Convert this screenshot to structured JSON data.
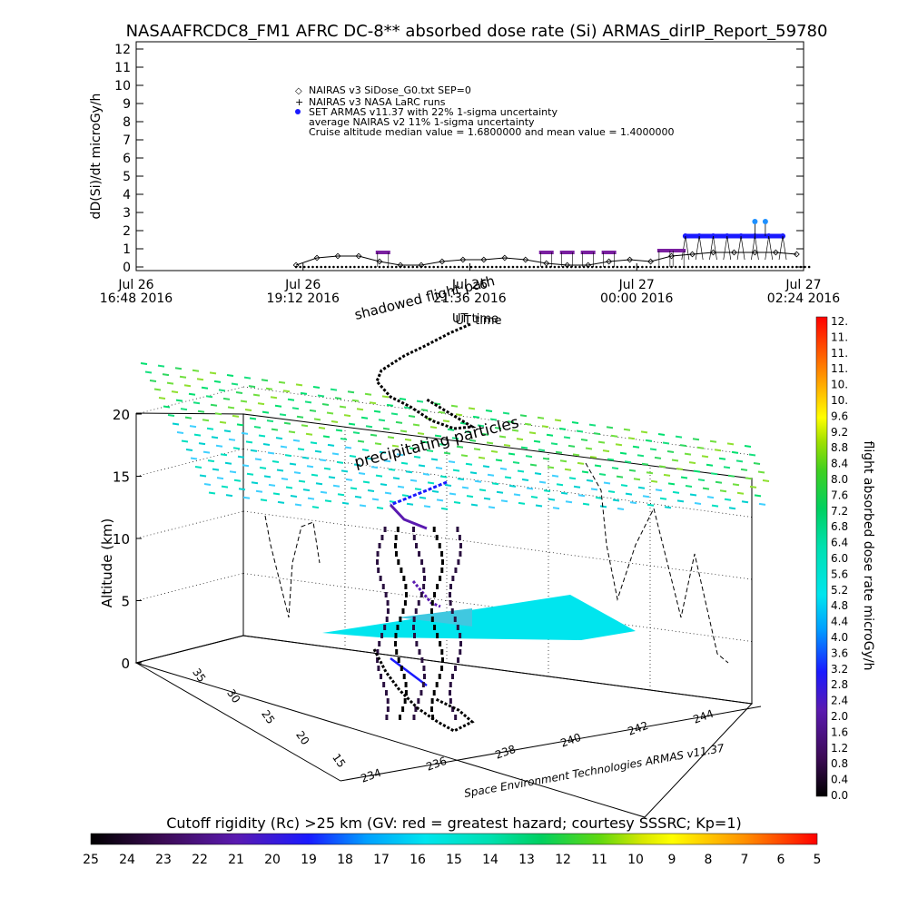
{
  "chart_data": [
    {
      "type": "line",
      "title": "NASAAFRCDC8_FM1 AFRC DC-8** absorbed dose rate (Si) ARMAS_dirIP_Report_59780",
      "ylabel": "dD(Si)/dt microGy/h",
      "xlabel": "UT time",
      "ylim": [
        0,
        12
      ],
      "yticks": [
        "0",
        "1",
        "2",
        "3",
        "4",
        "5",
        "6",
        "7",
        "8",
        "9",
        "10",
        "11",
        "12"
      ],
      "xticks": [
        {
          "line1": "Jul 26",
          "line2": "16:48 2016"
        },
        {
          "line1": "Jul 26",
          "line2": "19:12 2016"
        },
        {
          "line1": "Jul 26",
          "line2": "21:36 2016"
        },
        {
          "line1": "Jul 27",
          "line2": "00:00 2016"
        },
        {
          "line1": "Jul 27",
          "line2": "02:24 2016"
        }
      ],
      "legend": [
        "NAIRAS v3 SiDose_G0.txt SEP=0",
        "NAIRAS v3 NASA LaRC runs",
        "SET ARMAS v11.37 with 22% 1-sigma uncertainty",
        "average NAIRAS v2 11% 1-sigma uncertainty",
        "Cruise altitude median value = 1.6800000 and mean value = 1.4000000"
      ],
      "series": [
        {
          "name": "NAIRAS v3 SiDose_G0.txt SEP=0",
          "color": "#000000",
          "x_hours": [
            2.3,
            2.6,
            2.9,
            3.2,
            3.5,
            3.8,
            4.1,
            4.4,
            4.7,
            5.0,
            5.3,
            5.6,
            5.9,
            6.2,
            6.5,
            6.8,
            7.1,
            7.4,
            7.7,
            8.0,
            8.3,
            8.6,
            8.9,
            9.2,
            9.5
          ],
          "y": [
            0.1,
            0.5,
            0.6,
            0.6,
            0.3,
            0.1,
            0.1,
            0.3,
            0.4,
            0.4,
            0.5,
            0.4,
            0.2,
            0.1,
            0.1,
            0.3,
            0.4,
            0.3,
            0.6,
            0.7,
            0.8,
            0.8,
            0.8,
            0.8,
            0.7
          ]
        },
        {
          "name": "SET ARMAS v11.37 with 22% 1-sigma uncertainty",
          "color": "#1a1aff",
          "x_hours": [
            7.9,
            8.1,
            8.3,
            8.5,
            8.7,
            8.9,
            9.1,
            9.3
          ],
          "y": [
            1.7,
            1.7,
            1.7,
            1.7,
            1.7,
            1.7,
            1.7,
            1.7
          ]
        },
        {
          "name": "average NAIRAS v2 11% 1-sigma uncertainty",
          "color": "#7a1fa0",
          "x_hours": [
            3.55,
            5.9,
            6.2,
            6.5,
            6.8,
            7.6,
            7.8
          ],
          "y": [
            0.8,
            0.8,
            0.8,
            0.8,
            0.8,
            0.9,
            0.9
          ]
        }
      ],
      "peaks": [
        {
          "x_hours": 8.9,
          "y": 2.5
        },
        {
          "x_hours": 9.05,
          "y": 2.5
        }
      ]
    },
    {
      "type": "scatter",
      "subtype": "3d",
      "zlabel": "Altitude (km)",
      "zticks": [
        "0",
        "5",
        "10",
        "15",
        "20"
      ],
      "lat_ticks": [
        "15",
        "20",
        "25",
        "30",
        "35"
      ],
      "lon_ticks": [
        "234",
        "236",
        "238",
        "240",
        "242",
        "244"
      ],
      "credit": "Space Environment Technologies ARMAS v11.37",
      "annotations": [
        "shadowed flight path",
        "UT time",
        "precipitating particles"
      ],
      "cutoff_layer_altitude_km": 23,
      "flight_layer_altitude_km": 3
    }
  ],
  "dose_colorbar": {
    "label": "flight absorbed dose rate microGy/h",
    "ticks": [
      "0.0",
      "0.4",
      "0.8",
      "1.2",
      "1.6",
      "2.0",
      "2.4",
      "2.8",
      "3.2",
      "3.6",
      "4.0",
      "4.4",
      "4.8",
      "5.2",
      "5.6",
      "6.0",
      "6.4",
      "6.8",
      "7.2",
      "7.6",
      "8.0",
      "8.4",
      "8.8",
      "9.2",
      "9.6",
      "10.",
      "10.",
      "11.",
      "11.",
      "11.",
      "12."
    ]
  },
  "rigidity_colorbar": {
    "label": "Cutoff rigidity (Rc) >25 km (GV: red = greatest hazard; courtesy SSSRC; Kp=1)",
    "ticks": [
      "25",
      "24",
      "23",
      "22",
      "21",
      "20",
      "19",
      "18",
      "17",
      "16",
      "15",
      "14",
      "13",
      "12",
      "11",
      "10",
      "9",
      "8",
      "7",
      "6",
      "5"
    ]
  },
  "colors": {
    "nairas_dose": "#000000",
    "armas_dose": "#1a1aff",
    "nairas_v2_uncertainty": "#7a1fa0",
    "armas_peak": "#1e90ff",
    "flight_layer": "#00e5ee"
  }
}
